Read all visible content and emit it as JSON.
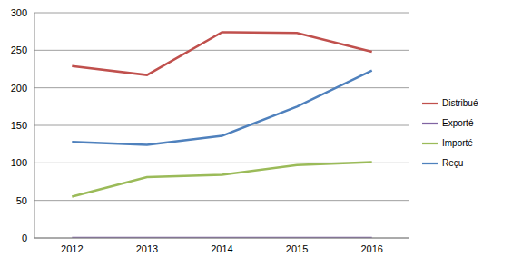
{
  "chart_data": {
    "type": "line",
    "categories": [
      "2012",
      "2013",
      "2014",
      "2015",
      "2016"
    ],
    "series": [
      {
        "name": "Reçu",
        "color": "#4F81BD",
        "values": [
          128,
          124,
          136,
          175,
          223
        ]
      },
      {
        "name": "Distribué",
        "color": "#C0504D",
        "values": [
          229,
          217,
          274,
          273,
          248
        ]
      },
      {
        "name": "Importé",
        "color": "#9BBB59",
        "values": [
          55,
          81,
          84,
          97,
          101
        ]
      },
      {
        "name": "Exporté",
        "color": "#8064A2",
        "values": [
          0,
          0,
          0,
          0,
          0
        ]
      }
    ],
    "ylim": [
      0,
      300
    ],
    "yticks": [
      0,
      50,
      100,
      150,
      200,
      250,
      300
    ],
    "grid": true,
    "legend": "right"
  }
}
